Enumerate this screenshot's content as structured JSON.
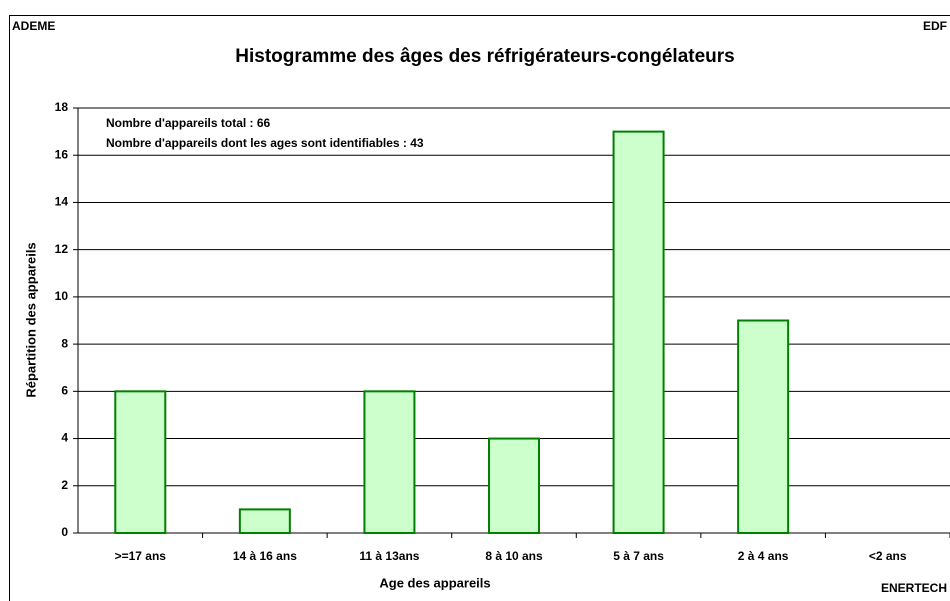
{
  "chart_data": {
    "type": "bar",
    "title": "Histogramme des âges des réfrigérateurs-congélateurs",
    "source_labels": [
      "ADEME",
      "EDF",
      "ENERTECH"
    ],
    "annotations": [
      "Nombre d'appareils total : 66",
      "Nombre d'appareils dont les ages sont identifiables : 43"
    ],
    "xlabel": "Age des appareils",
    "ylabel": "Répartition des appareils",
    "categories": [
      ">=17 ans",
      "14 à 16 ans",
      "11 à 13ans",
      "8 à 10 ans",
      "5 à 7 ans",
      "2 à 4 ans",
      "<2 ans"
    ],
    "values": [
      6,
      1,
      6,
      4,
      17,
      9,
      0
    ],
    "color": "#ccffcc",
    "edge_color": "#008000",
    "ylim": [
      0,
      18
    ],
    "yticks": [
      0,
      2,
      4,
      6,
      8,
      10,
      12,
      14,
      16,
      18
    ],
    "grid": true
  }
}
